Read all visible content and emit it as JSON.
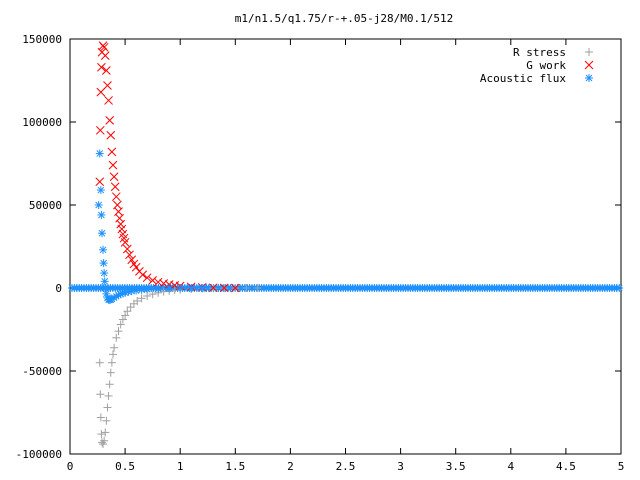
{
  "chart_data": {
    "type": "scatter",
    "title": "m1/n1.5/q1.75/r-+.05-j28/M0.1/512",
    "xlabel": "",
    "ylabel": "",
    "xlim": [
      0,
      5
    ],
    "ylim": [
      -100000,
      150000
    ],
    "x_ticks": [
      "0",
      "0.5",
      "1",
      "1.5",
      "2",
      "2.5",
      "3",
      "3.5",
      "4",
      "4.5",
      "5"
    ],
    "y_ticks": [
      "-100000",
      "-50000",
      "0",
      "50000",
      "100000",
      "150000"
    ],
    "grid": false,
    "legend_position": "top-right",
    "series": [
      {
        "name": "R stress",
        "marker": "plus",
        "color": "#a0a0a0",
        "points": [
          [
            0.27,
            -45000
          ],
          [
            0.275,
            -64000
          ],
          [
            0.28,
            -78000
          ],
          [
            0.285,
            -88000
          ],
          [
            0.29,
            -93000
          ],
          [
            0.3,
            -94000
          ],
          [
            0.31,
            -92000
          ],
          [
            0.32,
            -87000
          ],
          [
            0.33,
            -80000
          ],
          [
            0.34,
            -72000
          ],
          [
            0.35,
            -65000
          ],
          [
            0.36,
            -58000
          ],
          [
            0.37,
            -51000
          ],
          [
            0.38,
            -45000
          ],
          [
            0.39,
            -40000
          ],
          [
            0.4,
            -36000
          ],
          [
            0.42,
            -30000
          ],
          [
            0.44,
            -26000
          ],
          [
            0.46,
            -22000
          ],
          [
            0.48,
            -19000
          ],
          [
            0.5,
            -16500
          ],
          [
            0.52,
            -14000
          ],
          [
            0.55,
            -11500
          ],
          [
            0.58,
            -9500
          ],
          [
            0.61,
            -7800
          ],
          [
            0.65,
            -6200
          ],
          [
            0.7,
            -4800
          ],
          [
            0.75,
            -3700
          ],
          [
            0.8,
            -2900
          ],
          [
            0.85,
            -2200
          ],
          [
            0.9,
            -1700
          ],
          [
            0.95,
            -1300
          ],
          [
            1.0,
            -1000
          ],
          [
            1.1,
            -600
          ],
          [
            1.2,
            -350
          ],
          [
            1.3,
            -200
          ],
          [
            1.4,
            -100
          ],
          [
            1.5,
            -50
          ],
          [
            1.6,
            0
          ],
          [
            1.7,
            0
          ]
        ]
      },
      {
        "name": "G work",
        "marker": "cross",
        "color": "#ff0000",
        "points": [
          [
            0.27,
            64000
          ],
          [
            0.275,
            95000
          ],
          [
            0.28,
            118000
          ],
          [
            0.285,
            133000
          ],
          [
            0.29,
            142000
          ],
          [
            0.3,
            146000
          ],
          [
            0.31,
            145000
          ],
          [
            0.32,
            140000
          ],
          [
            0.33,
            131000
          ],
          [
            0.34,
            122000
          ],
          [
            0.35,
            113000
          ],
          [
            0.36,
            101000
          ],
          [
            0.37,
            92000
          ],
          [
            0.38,
            82000
          ],
          [
            0.39,
            74000
          ],
          [
            0.4,
            67000
          ],
          [
            0.41,
            61000
          ],
          [
            0.42,
            55000
          ],
          [
            0.43,
            50000
          ],
          [
            0.44,
            46000
          ],
          [
            0.45,
            42000
          ],
          [
            0.46,
            38500
          ],
          [
            0.47,
            35500
          ],
          [
            0.48,
            32500
          ],
          [
            0.49,
            30000
          ],
          [
            0.5,
            27500
          ],
          [
            0.52,
            23500
          ],
          [
            0.54,
            20000
          ],
          [
            0.56,
            17000
          ],
          [
            0.58,
            14500
          ],
          [
            0.6,
            12500
          ],
          [
            0.63,
            10000
          ],
          [
            0.66,
            8000
          ],
          [
            0.7,
            6200
          ],
          [
            0.75,
            4600
          ],
          [
            0.8,
            3500
          ],
          [
            0.85,
            2700
          ],
          [
            0.9,
            2100
          ],
          [
            0.95,
            1600
          ],
          [
            1.0,
            1200
          ],
          [
            1.1,
            700
          ],
          [
            1.2,
            400
          ],
          [
            1.3,
            200
          ],
          [
            1.4,
            100
          ],
          [
            1.5,
            0
          ]
        ]
      },
      {
        "name": "Acoustic flux",
        "marker": "star",
        "color": "#1e90ff",
        "points": [
          [
            0.26,
            50000
          ],
          [
            0.27,
            81000
          ],
          [
            0.28,
            59000
          ],
          [
            0.285,
            44000
          ],
          [
            0.29,
            33000
          ],
          [
            0.3,
            23000
          ],
          [
            0.305,
            15000
          ],
          [
            0.31,
            9000
          ],
          [
            0.315,
            4000
          ],
          [
            0.32,
            0
          ],
          [
            0.33,
            -3500
          ],
          [
            0.34,
            -6000
          ],
          [
            0.35,
            -7000
          ],
          [
            0.36,
            -7200
          ],
          [
            0.37,
            -7000
          ],
          [
            0.38,
            -6500
          ],
          [
            0.4,
            -5800
          ],
          [
            0.42,
            -5000
          ],
          [
            0.44,
            -4300
          ],
          [
            0.46,
            -3700
          ],
          [
            0.48,
            -3200
          ],
          [
            0.5,
            -2800
          ],
          [
            0.53,
            -2300
          ],
          [
            0.56,
            -1900
          ],
          [
            0.6,
            -1500
          ],
          [
            0.65,
            -1100
          ],
          [
            0.7,
            -800
          ],
          [
            0.8,
            -450
          ],
          [
            0.9,
            -250
          ],
          [
            1.0,
            -120
          ],
          [
            1.1,
            -60
          ],
          [
            1.2,
            0
          ]
        ],
        "baseline_y": 0,
        "baseline_x_range": [
          0,
          5
        ]
      }
    ]
  }
}
